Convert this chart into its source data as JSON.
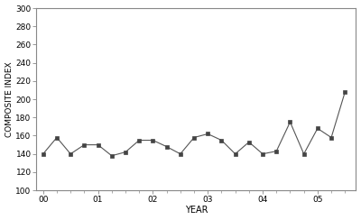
{
  "x_labels": [
    "00",
    "01",
    "02",
    "03",
    "04",
    "05"
  ],
  "x_tick_positions": [
    0,
    4,
    8,
    12,
    16,
    20
  ],
  "quarters": [
    0,
    1,
    2,
    3,
    4,
    5,
    6,
    7,
    8,
    9,
    10,
    11,
    12,
    13,
    14,
    15,
    16,
    17,
    18,
    19,
    20,
    21,
    22
  ],
  "values": [
    140,
    158,
    140,
    150,
    150,
    138,
    142,
    155,
    155,
    148,
    140,
    158,
    162,
    155,
    140,
    153,
    140,
    143,
    175,
    140,
    168,
    158,
    208
  ],
  "ylim": [
    100,
    300
  ],
  "yticks": [
    100,
    120,
    140,
    160,
    180,
    200,
    220,
    240,
    260,
    280,
    300
  ],
  "xlim": [
    -0.5,
    22.8
  ],
  "xlabel": "YEAR",
  "ylabel": "COMPOSITE INDEX",
  "line_color": "#555555",
  "marker": "s",
  "marker_size": 3.5,
  "marker_color": "#444444",
  "background_color": "#ffffff"
}
